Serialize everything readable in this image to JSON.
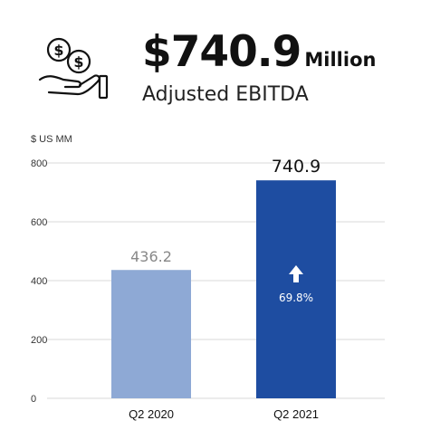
{
  "header": {
    "amount": "$740.9",
    "unit": "Million",
    "metric": "Adjusted EBITDA",
    "icon": "hand-holding-coins-icon"
  },
  "colors": {
    "bar_2020": "#8ea9d5",
    "bar_2021": "#1e4da1",
    "gridline": "#d9d9d9"
  },
  "chart_data": {
    "type": "bar",
    "categories": [
      "Q2 2020",
      "Q2 2021"
    ],
    "values": [
      436.2,
      740.9
    ],
    "value_labels": [
      "436.2",
      "740.9"
    ],
    "ylabel": "$ US MM",
    "ylim": [
      0,
      800
    ],
    "yticks": [
      0,
      200,
      400,
      600,
      800
    ],
    "grid": true,
    "growth_label": "69.8%"
  }
}
